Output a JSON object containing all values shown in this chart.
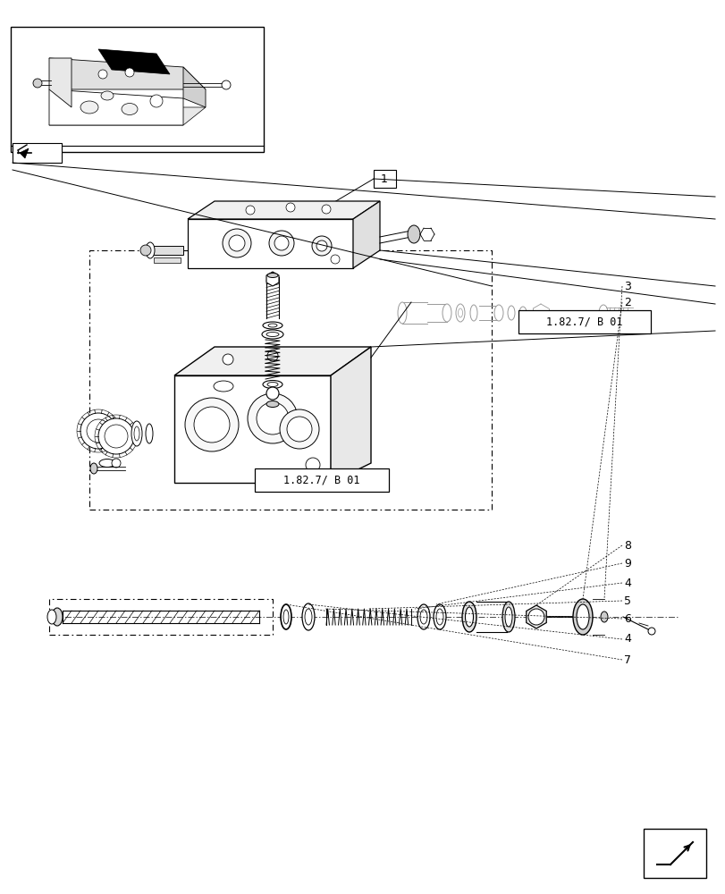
{
  "bg_color": "#ffffff",
  "line_color": "#000000",
  "label_box1": "1.82.7/ B 01",
  "label_box2": "1.82.7/ B 01",
  "fig_width": 8.12,
  "fig_height": 10.0,
  "dpi": 100
}
